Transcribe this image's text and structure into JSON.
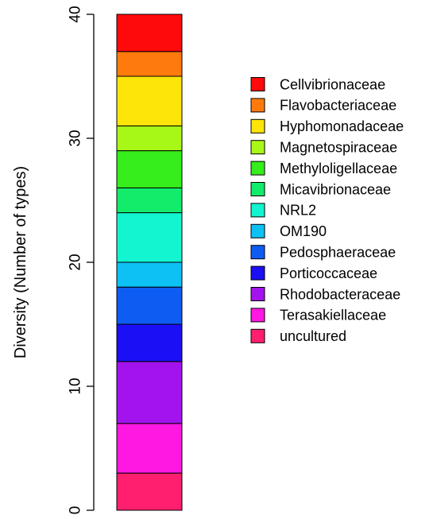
{
  "chart_data": {
    "type": "bar",
    "subtype": "stacked",
    "ylabel": "Diversity (Number of types)",
    "ylim": [
      0,
      40
    ],
    "yticks": [
      "0",
      "10",
      "20",
      "30",
      "40"
    ],
    "legend_position": "right",
    "grid": false,
    "series": [
      {
        "name": "uncultured",
        "value": 3,
        "color": "#ff1f6e"
      },
      {
        "name": "Terasakiellaceae",
        "value": 4,
        "color": "#ff17e2"
      },
      {
        "name": "Rhodobacteraceae",
        "value": 5,
        "color": "#a313ed"
      },
      {
        "name": "Porticoccaceae",
        "value": 3,
        "color": "#1a0ff5"
      },
      {
        "name": "Pedosphaeraceae",
        "value": 3,
        "color": "#0e5cf2"
      },
      {
        "name": "OM190",
        "value": 2,
        "color": "#0dc1f5"
      },
      {
        "name": "NRL2",
        "value": 4,
        "color": "#12f5d0"
      },
      {
        "name": "Micavibrionaceae",
        "value": 2,
        "color": "#13ec6b"
      },
      {
        "name": "Methyloligellaceae",
        "value": 3,
        "color": "#35ee1b"
      },
      {
        "name": "Magnetospiraceae",
        "value": 2,
        "color": "#a7f717"
      },
      {
        "name": "Hyphomonadaceae",
        "value": 4,
        "color": "#fde50a"
      },
      {
        "name": "Flavobacteriaceae",
        "value": 2,
        "color": "#ff7a0d"
      },
      {
        "name": "Cellvibrionaceae",
        "value": 3,
        "color": "#ff0a0a"
      }
    ],
    "legend_order": [
      "Cellvibrionaceae",
      "Flavobacteriaceae",
      "Hyphomonadaceae",
      "Magnetospiraceae",
      "Methyloligellaceae",
      "Micavibrionaceae",
      "NRL2",
      "OM190",
      "Pedosphaeraceae",
      "Porticoccaceae",
      "Rhodobacteraceae",
      "Terasakiellaceae",
      "uncultured"
    ]
  }
}
